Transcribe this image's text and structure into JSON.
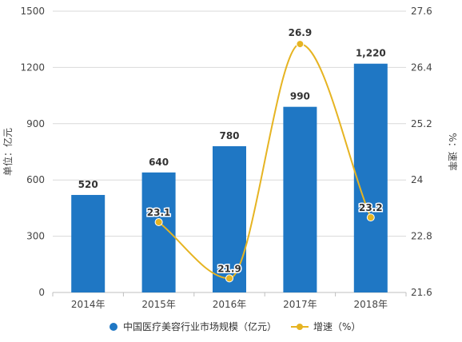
{
  "chart_data": {
    "type": "bar",
    "categories": [
      "2014年",
      "2015年",
      "2016年",
      "2017年",
      "2018年"
    ],
    "series": [
      {
        "name": "中国医疗美容行业市场规模（亿元）",
        "type": "bar",
        "axis": "left",
        "values": [
          520,
          640,
          780,
          990,
          1220
        ],
        "value_labels": [
          "520",
          "640",
          "780",
          "990",
          "1,220"
        ],
        "color": "#1f77c4"
      },
      {
        "name": "增速（%）",
        "type": "line",
        "axis": "right",
        "smooth": true,
        "values": [
          null,
          23.1,
          21.9,
          26.9,
          23.2
        ],
        "value_labels": [
          "",
          "23.1",
          "21.9",
          "26.9",
          "23.2"
        ],
        "color": "#e6b422"
      }
    ],
    "ylabel": "单位：亿元",
    "ylabel_right": "%：速率",
    "ylim": [
      0,
      1500
    ],
    "yticks": [
      0,
      300,
      600,
      900,
      1200,
      1500
    ],
    "ytick_labels": [
      "0",
      "300",
      "600",
      "900",
      "1200",
      "1500"
    ],
    "ylim_right": [
      21.6,
      27.6
    ],
    "yticks_right": [
      21.6,
      22.8,
      24,
      25.2,
      26.4,
      27.6
    ],
    "ytick_labels_right": [
      "21.6",
      "22.8",
      "24",
      "25.2",
      "26.4",
      "27.6"
    ],
    "grid": "horizontal",
    "legend": "bottom"
  }
}
